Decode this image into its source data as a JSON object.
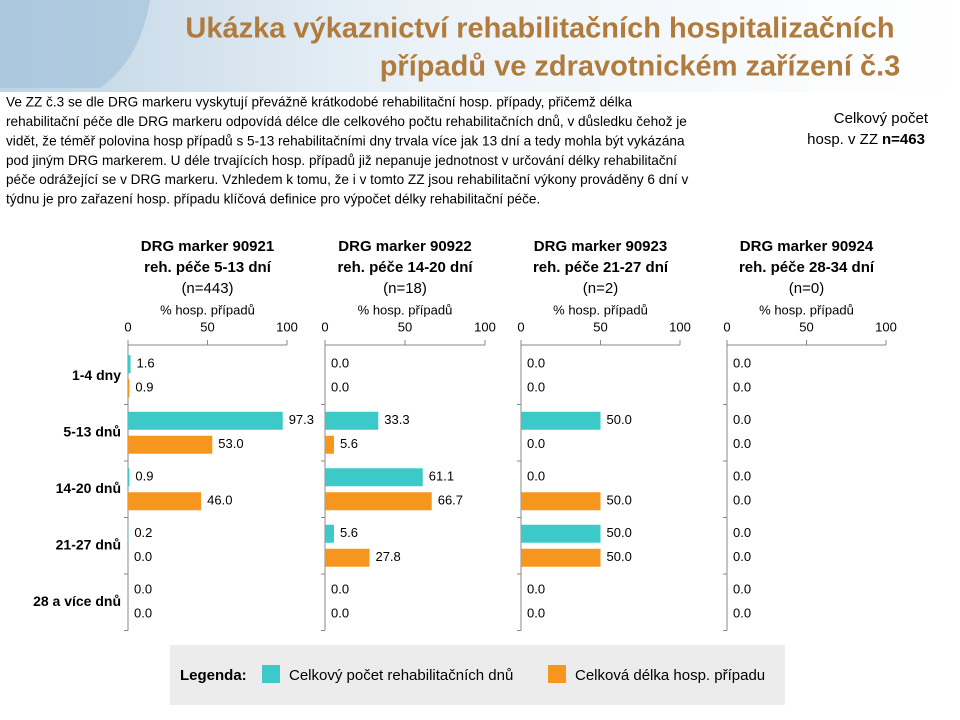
{
  "header": {
    "title_lines": [
      "Ukázka výkaznictví  rehabilitačních hospitalizačních",
      "případů ve zdravotnickém zařízení č.3"
    ]
  },
  "paragraph": [
    "Ve ZZ č.3 se dle DRG markeru vyskytují převážně krátkodobé rehabilitační hosp. případy, přičemž délka",
    "rehabilitační péče dle DRG markeru odpovídá délce dle celkového počtu rehabilitačních dnů, v důsledku čehož je",
    "vidět, že téměř polovina hosp případů s 5-13 rehabilitačními dny trvala více jak 13 dní a tedy mohla být vykázána",
    "pod jiným DRG markerem. U déle trvajících hosp. případů již nepanuje jednotnost v určování délky rehabilitační",
    "péče odrážející se v DRG markeru. Vzhledem k tomu, že i v tomto ZZ jsou rehabilitační výkony prováděny 6 dní v",
    "týdnu je pro zařazení hosp. případu klíčová definice pro výpočet délky rehabilitační péče."
  ],
  "side_note": {
    "line1": "Celkový počet",
    "line2": "hosp. v ZZ",
    "count": "n=463"
  },
  "legend": {
    "title": "Legenda:",
    "items": [
      {
        "name": "Celkový počet rehabilitačních dnů",
        "color": "#3ec9c9"
      },
      {
        "name": "Celková délka hosp. případu",
        "color": "#f7961f"
      }
    ]
  },
  "chart_data": [
    {
      "type": "bar",
      "orientation": "horizontal",
      "title": [
        "DRG marker 90921",
        "reh. péče 5-13 dní",
        "(n=443)"
      ],
      "xlabel": "% hosp. případů",
      "categories": [
        "1-4 dny",
        "5-13 dnů",
        "14-20 dnů",
        "21-27 dnů",
        "28 a více dnů"
      ],
      "xlim": [
        0,
        100
      ],
      "xticks": [
        0,
        50,
        100
      ],
      "series": [
        {
          "values": [
            1.6,
            97.3,
            0.9,
            0.2,
            0.0
          ],
          "value_labels": [
            "1.6",
            "97.3",
            "0.9",
            "0.2",
            "0.0"
          ]
        },
        {
          "values": [
            0.9,
            53.0,
            46.0,
            0.0,
            0.0
          ],
          "value_labels": [
            "0.9",
            "53.0",
            "46.0",
            "0.0",
            "0.0"
          ]
        }
      ]
    },
    {
      "type": "bar",
      "orientation": "horizontal",
      "title": [
        "DRG marker 90922",
        "reh. péče 14-20 dní",
        "(n=18)"
      ],
      "xlabel": "% hosp. případů",
      "xlim": [
        0,
        100
      ],
      "xticks": [
        0,
        50,
        100
      ],
      "series": [
        {
          "values": [
            0.0,
            33.3,
            61.1,
            5.6,
            0.0
          ],
          "value_labels": [
            "0.0",
            "33.3",
            "61.1",
            "5.6",
            "0.0"
          ]
        },
        {
          "values": [
            0.0,
            5.6,
            66.7,
            27.8,
            0.0
          ],
          "value_labels": [
            "0.0",
            "5.6",
            "66.7",
            "27.8",
            "0.0"
          ]
        }
      ]
    },
    {
      "type": "bar",
      "orientation": "horizontal",
      "title": [
        "DRG marker 90923",
        "reh. péče 21-27 dní",
        "(n=2)"
      ],
      "xlabel": "% hosp. případů",
      "xlim": [
        0,
        100
      ],
      "xticks": [
        0,
        50,
        100
      ],
      "series": [
        {
          "values": [
            0.0,
            50.0,
            0.0,
            50.0,
            0.0
          ],
          "value_labels": [
            "0.0",
            "50.0",
            "0.0",
            "50.0",
            "0.0"
          ]
        },
        {
          "values": [
            0.0,
            0.0,
            50.0,
            50.0,
            0.0
          ],
          "value_labels": [
            "0.0",
            "0.0",
            "50.0",
            "50.0",
            "0.0"
          ]
        }
      ]
    },
    {
      "type": "bar",
      "orientation": "horizontal",
      "title": [
        "DRG marker 90924",
        "reh. péče 28-34 dní",
        "(n=0)"
      ],
      "xlabel": "% hosp. případů",
      "xlim": [
        0,
        100
      ],
      "xticks": [
        0,
        50,
        100
      ],
      "series": [
        {
          "values": [
            0.0,
            0.0,
            0.0,
            0.0,
            0.0
          ],
          "value_labels": [
            "0.0",
            "0.0",
            "0.0",
            "0.0",
            "0.0"
          ]
        },
        {
          "values": [
            0.0,
            0.0,
            0.0,
            0.0,
            0.0
          ],
          "value_labels": [
            "0.0",
            "0.0",
            "0.0",
            "0.0",
            "0.0"
          ]
        }
      ]
    }
  ]
}
